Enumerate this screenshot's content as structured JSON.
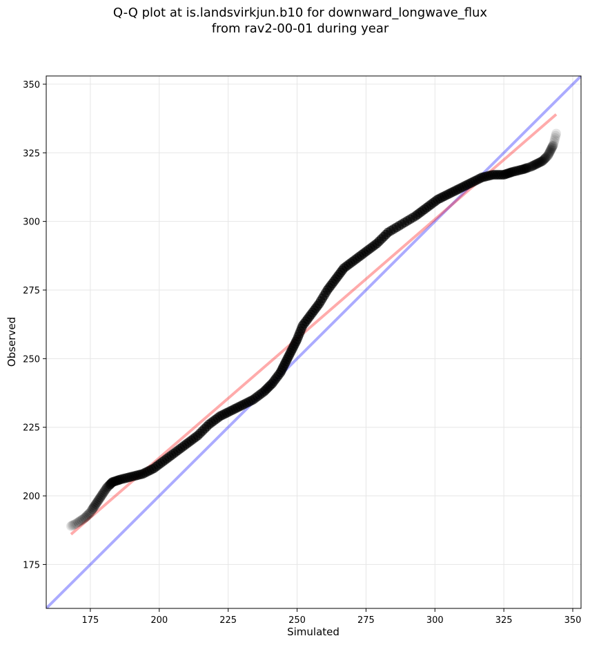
{
  "chart_data": {
    "type": "scatter",
    "title_line1": "Q-Q plot at is.landsvirkjun.b10 for downward_longwave_flux",
    "title_line2": "from rav2-00-01 during year",
    "xlabel": "Simulated",
    "ylabel": "Observed",
    "xlim": [
      159,
      353
    ],
    "ylim": [
      159,
      353
    ],
    "xticks": [
      175,
      200,
      225,
      250,
      275,
      300,
      325,
      350
    ],
    "yticks": [
      175,
      200,
      225,
      250,
      275,
      300,
      325,
      350
    ],
    "grid": true,
    "quantile_curve": [
      [
        168,
        189
      ],
      [
        170,
        190
      ],
      [
        173,
        192
      ],
      [
        175,
        194
      ],
      [
        177,
        197
      ],
      [
        179,
        200
      ],
      [
        181,
        203
      ],
      [
        183,
        205
      ],
      [
        186,
        206
      ],
      [
        190,
        207
      ],
      [
        194,
        208
      ],
      [
        198,
        210
      ],
      [
        202,
        213
      ],
      [
        206,
        216
      ],
      [
        210,
        219
      ],
      [
        214,
        222
      ],
      [
        218,
        226
      ],
      [
        222,
        229
      ],
      [
        226,
        231
      ],
      [
        230,
        233
      ],
      [
        234,
        235
      ],
      [
        238,
        238
      ],
      [
        241,
        241
      ],
      [
        244,
        245
      ],
      [
        246,
        249
      ],
      [
        248,
        253
      ],
      [
        250,
        257
      ],
      [
        252,
        262
      ],
      [
        255,
        266
      ],
      [
        258,
        270
      ],
      [
        261,
        275
      ],
      [
        264,
        279
      ],
      [
        267,
        283
      ],
      [
        271,
        286
      ],
      [
        275,
        289
      ],
      [
        279,
        292
      ],
      [
        283,
        296
      ],
      [
        288,
        299
      ],
      [
        293,
        302
      ],
      [
        297,
        305
      ],
      [
        301,
        308
      ],
      [
        305,
        310
      ],
      [
        309,
        312
      ],
      [
        313,
        314
      ],
      [
        317,
        316
      ],
      [
        321,
        317
      ],
      [
        325,
        317
      ],
      [
        328,
        318
      ],
      [
        332,
        319
      ],
      [
        335,
        320
      ],
      [
        337,
        321
      ],
      [
        339,
        322
      ],
      [
        341,
        324
      ],
      [
        342,
        326
      ],
      [
        343,
        328
      ],
      [
        344,
        332
      ]
    ],
    "reference_line": {
      "points": [
        [
          159,
          159
        ],
        [
          353,
          353
        ]
      ],
      "color": "#0000ff"
    },
    "fit_line": {
      "points": [
        [
          168,
          186
        ],
        [
          344,
          339
        ]
      ],
      "color": "#ff0000"
    },
    "marker_color": "#000000"
  }
}
